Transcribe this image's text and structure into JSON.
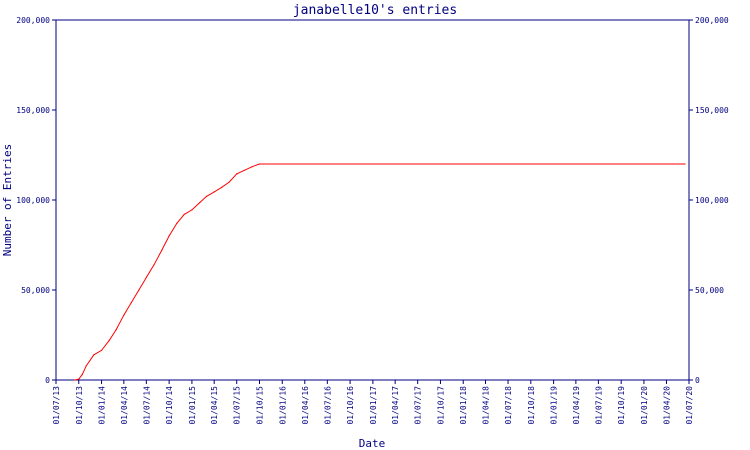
{
  "chart_data": {
    "type": "line",
    "title": "janabelle10's entries",
    "xlabel": "Date",
    "ylabel": "Number of Entries",
    "ylim": [
      0,
      200000
    ],
    "yticks": [
      0,
      50000,
      100000,
      150000,
      200000
    ],
    "ytick_labels": [
      "0",
      "50,000",
      "100,000",
      "150,000",
      "200,000"
    ],
    "xticks": [
      "01/07/13",
      "01/10/13",
      "01/01/14",
      "01/04/14",
      "01/07/14",
      "01/10/14",
      "01/01/15",
      "01/04/15",
      "01/07/15",
      "01/10/15",
      "01/01/16",
      "01/04/16",
      "01/07/16",
      "01/10/16",
      "01/01/17",
      "01/04/17",
      "01/07/17",
      "01/10/17",
      "01/01/18",
      "01/04/18",
      "01/07/18",
      "01/10/18",
      "01/01/19",
      "01/04/19",
      "01/07/19",
      "01/10/19",
      "01/01/20",
      "01/04/20",
      "01/07/20"
    ],
    "grid": false,
    "legend": "none",
    "series": [
      {
        "color": "#ff0000",
        "points": [
          [
            "2013-09-15",
            0
          ],
          [
            "2013-10-01",
            500
          ],
          [
            "2013-10-15",
            3000
          ],
          [
            "2013-11-01",
            8000
          ],
          [
            "2013-12-01",
            14000
          ],
          [
            "2014-01-01",
            16500
          ],
          [
            "2014-02-01",
            22000
          ],
          [
            "2014-03-01",
            28000
          ],
          [
            "2014-04-01",
            36000
          ],
          [
            "2014-05-01",
            43000
          ],
          [
            "2014-06-01",
            50000
          ],
          [
            "2014-07-01",
            57000
          ],
          [
            "2014-08-01",
            64000
          ],
          [
            "2014-09-01",
            72000
          ],
          [
            "2014-10-01",
            80000
          ],
          [
            "2014-11-01",
            87000
          ],
          [
            "2014-12-01",
            92000
          ],
          [
            "2015-01-01",
            94500
          ],
          [
            "2015-02-01",
            98500
          ],
          [
            "2015-03-01",
            102000
          ],
          [
            "2015-04-01",
            104500
          ],
          [
            "2015-05-01",
            107000
          ],
          [
            "2015-06-01",
            110000
          ],
          [
            "2015-07-01",
            114500
          ],
          [
            "2015-08-01",
            116500
          ],
          [
            "2015-09-01",
            118500
          ],
          [
            "2015-10-01",
            120000
          ],
          [
            "2020-06-15",
            120000
          ]
        ]
      }
    ],
    "colors": {
      "axis": "#000080",
      "line": "#ff0000",
      "background": "#ffffff"
    }
  }
}
